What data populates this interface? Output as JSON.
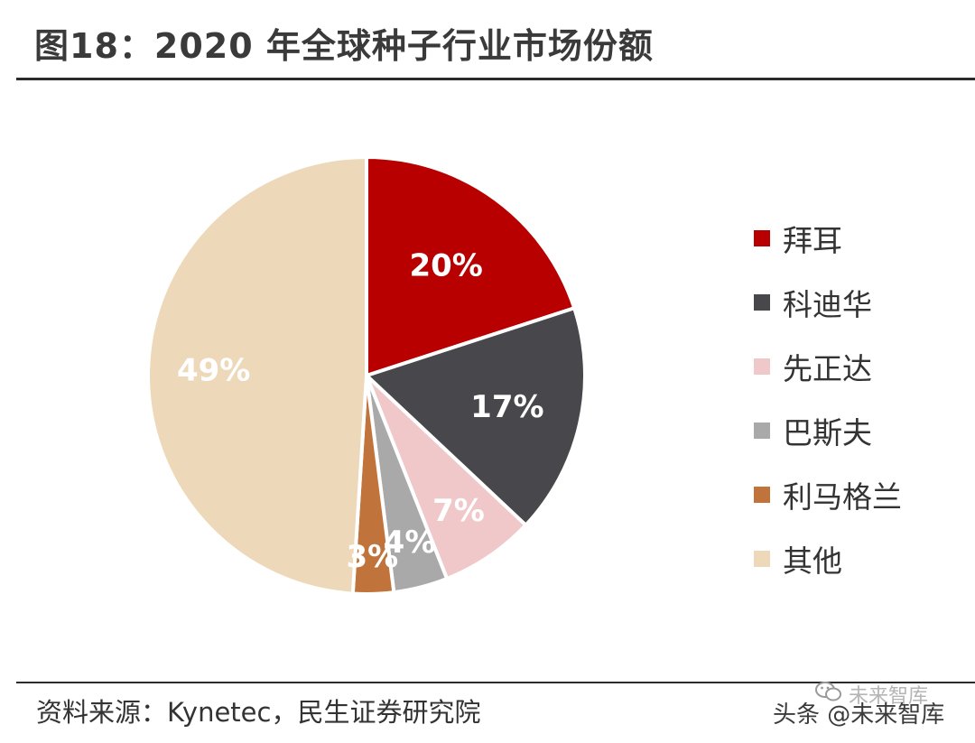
{
  "title": "图18：2020 年全球种子行业市场份额",
  "source": "资料来源：Kynetec，民生证券研究院",
  "watermark": {
    "brand": "未来智库",
    "platform_line": "头条 @未来智库"
  },
  "chart_data": {
    "type": "pie",
    "title": "",
    "legend_position": "right",
    "start_angle_deg": 0,
    "direction": "clockwise",
    "slices": [
      {
        "label": "拜耳",
        "value": 20,
        "display": "20%",
        "color": "#B80000"
      },
      {
        "label": "科迪华",
        "value": 17,
        "display": "17%",
        "color": "#48484C"
      },
      {
        "label": "先正达",
        "value": 7,
        "display": "7%",
        "color": "#F0C8CA"
      },
      {
        "label": "巴斯夫",
        "value": 4,
        "display": "4%",
        "color": "#A9A9AA"
      },
      {
        "label": "利马格兰",
        "value": 3,
        "display": "3%",
        "color": "#C0733A"
      },
      {
        "label": "其他",
        "value": 49,
        "display": "49%",
        "color": "#EDD9BA"
      }
    ]
  }
}
